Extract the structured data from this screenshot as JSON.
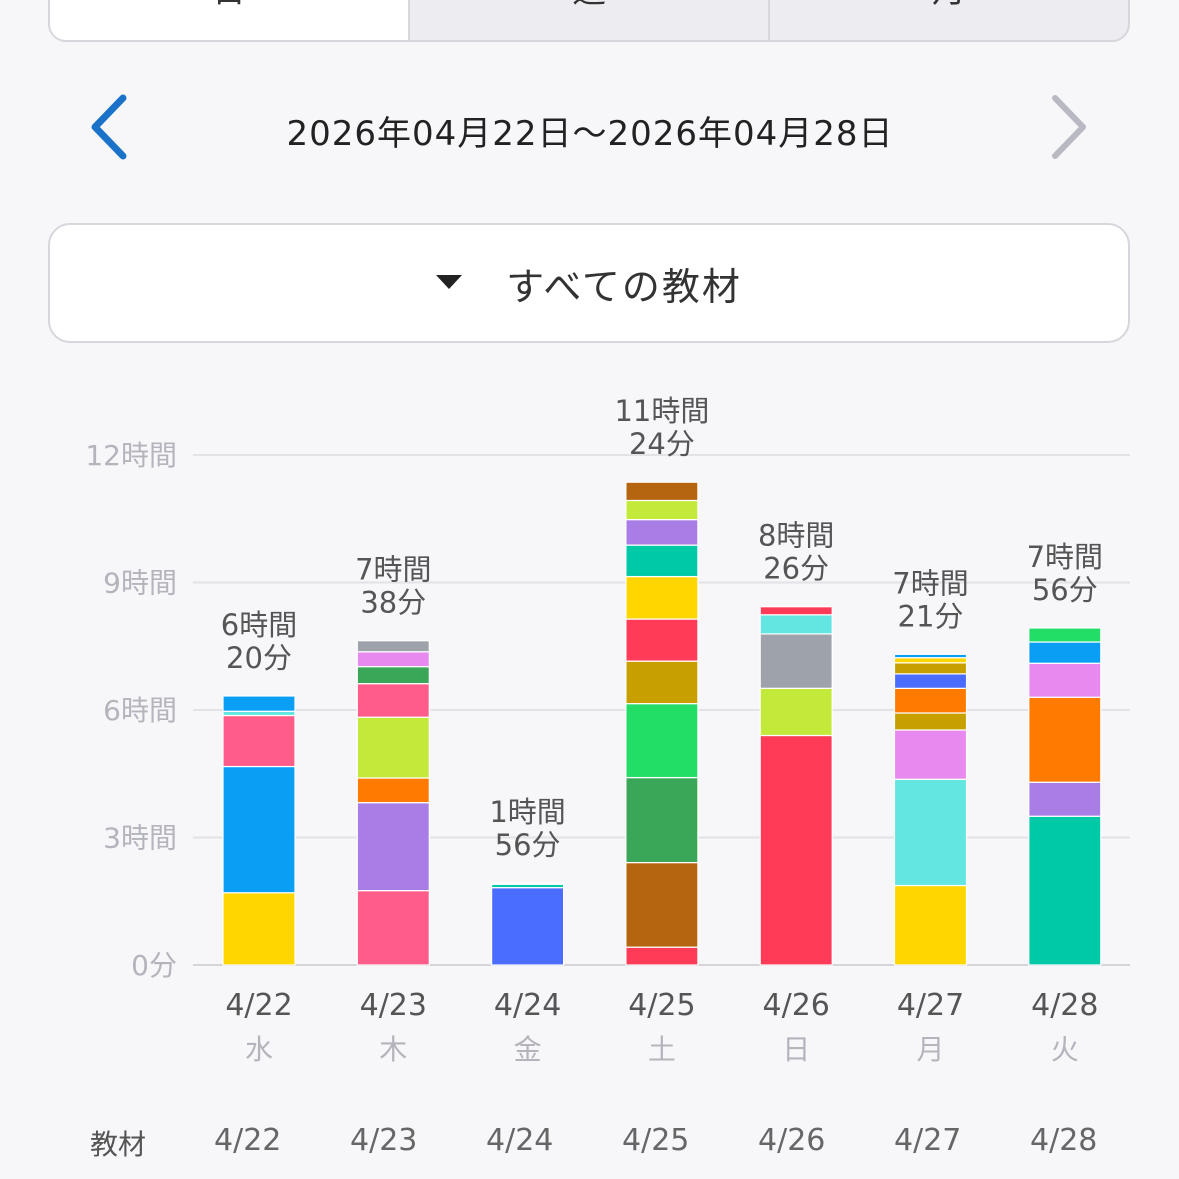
{
  "tabs": [
    "日",
    "週",
    "月"
  ],
  "date_range": "2026年04月22日〜2026年04月28日",
  "filter_label": "すべての教材",
  "colors": {
    "accent": "#1a73c8",
    "disabled": "#b9b9c3"
  },
  "chart_data": {
    "type": "stacked-bar",
    "y_unit": "hours",
    "ylim": [
      0,
      12
    ],
    "y_ticks": [
      {
        "value": 0,
        "label": "0分"
      },
      {
        "value": 3,
        "label": "3時間"
      },
      {
        "value": 6,
        "label": "6時間"
      },
      {
        "value": 9,
        "label": "9時間"
      },
      {
        "value": 12,
        "label": "12時間"
      }
    ],
    "grid": true,
    "categories": [
      {
        "date": "4/22",
        "dow": "水",
        "total_line1": "6時間",
        "total_line2": "20分"
      },
      {
        "date": "4/23",
        "dow": "木",
        "total_line1": "7時間",
        "total_line2": "38分"
      },
      {
        "date": "4/24",
        "dow": "金",
        "total_line1": "1時間",
        "total_line2": "56分"
      },
      {
        "date": "4/25",
        "dow": "土",
        "total_line1": "11時間",
        "total_line2": "24分"
      },
      {
        "date": "4/26",
        "dow": "日",
        "total_line1": "8時間",
        "total_line2": "26分"
      },
      {
        "date": "4/27",
        "dow": "月",
        "total_line1": "7時間",
        "total_line2": "21分"
      },
      {
        "date": "4/28",
        "dow": "火",
        "total_line1": "7時間",
        "total_line2": "56分"
      }
    ],
    "segments": [
      [
        {
          "value": 1.7,
          "color": "#ffd600"
        },
        {
          "value": 2.97,
          "color": "#0a9ef5"
        },
        {
          "value": 1.2,
          "color": "#ff5c8a"
        },
        {
          "value": 0.1,
          "color": "#63e6e2"
        },
        {
          "value": 0.36,
          "color": "#0a9ef5"
        }
      ],
      [
        {
          "value": 1.75,
          "color": "#ff5c8a"
        },
        {
          "value": 2.07,
          "color": "#a97de6"
        },
        {
          "value": 0.58,
          "color": "#ff7a00"
        },
        {
          "value": 1.43,
          "color": "#c3ea3a"
        },
        {
          "value": 0.79,
          "color": "#ff5c8a"
        },
        {
          "value": 0.4,
          "color": "#3aa657"
        },
        {
          "value": 0.35,
          "color": "#e889ef"
        },
        {
          "value": 0.26,
          "color": "#9ea3ab"
        }
      ],
      [
        {
          "value": 1.82,
          "color": "#4a6cff"
        },
        {
          "value": 0.08,
          "color": "#00c9a7"
        },
        {
          "value": 0.03,
          "color": "#cfd6e0"
        }
      ],
      [
        {
          "value": 0.42,
          "color": "#ff3b57"
        },
        {
          "value": 1.99,
          "color": "#b5650f"
        },
        {
          "value": 2.0,
          "color": "#3aa657"
        },
        {
          "value": 1.74,
          "color": "#22dd66"
        },
        {
          "value": 1.0,
          "color": "#c7a000"
        },
        {
          "value": 0.99,
          "color": "#ff3b57"
        },
        {
          "value": 1.0,
          "color": "#ffd600"
        },
        {
          "value": 0.74,
          "color": "#00c9a7"
        },
        {
          "value": 0.6,
          "color": "#a97de6"
        },
        {
          "value": 0.45,
          "color": "#c3ea3a"
        },
        {
          "value": 0.43,
          "color": "#b5650f"
        }
      ],
      [
        {
          "value": 5.4,
          "color": "#ff3b57"
        },
        {
          "value": 1.11,
          "color": "#c3ea3a"
        },
        {
          "value": 1.28,
          "color": "#9ea3ab"
        },
        {
          "value": 0.45,
          "color": "#63e6e2"
        },
        {
          "value": 0.19,
          "color": "#ff3b57"
        }
      ],
      [
        {
          "value": 1.87,
          "color": "#ffd600"
        },
        {
          "value": 2.5,
          "color": "#63e6e2"
        },
        {
          "value": 1.16,
          "color": "#e889ef"
        },
        {
          "value": 0.4,
          "color": "#c7a000"
        },
        {
          "value": 0.58,
          "color": "#ff7a00"
        },
        {
          "value": 0.34,
          "color": "#4a6cff"
        },
        {
          "value": 0.26,
          "color": "#c7a000"
        },
        {
          "value": 0.12,
          "color": "#ffd600"
        },
        {
          "value": 0.08,
          "color": "#0a9ef5"
        }
      ],
      [
        {
          "value": 3.5,
          "color": "#00c9a7"
        },
        {
          "value": 0.8,
          "color": "#a97de6"
        },
        {
          "value": 2.0,
          "color": "#ff7a00"
        },
        {
          "value": 0.8,
          "color": "#e889ef"
        },
        {
          "value": 0.5,
          "color": "#0a9ef5"
        },
        {
          "value": 0.33,
          "color": "#22dd66"
        }
      ]
    ]
  },
  "bottom_row": {
    "header": "教材",
    "dates": [
      "4/22",
      "4/23",
      "4/24",
      "4/25",
      "4/26",
      "4/27",
      "4/28"
    ]
  }
}
